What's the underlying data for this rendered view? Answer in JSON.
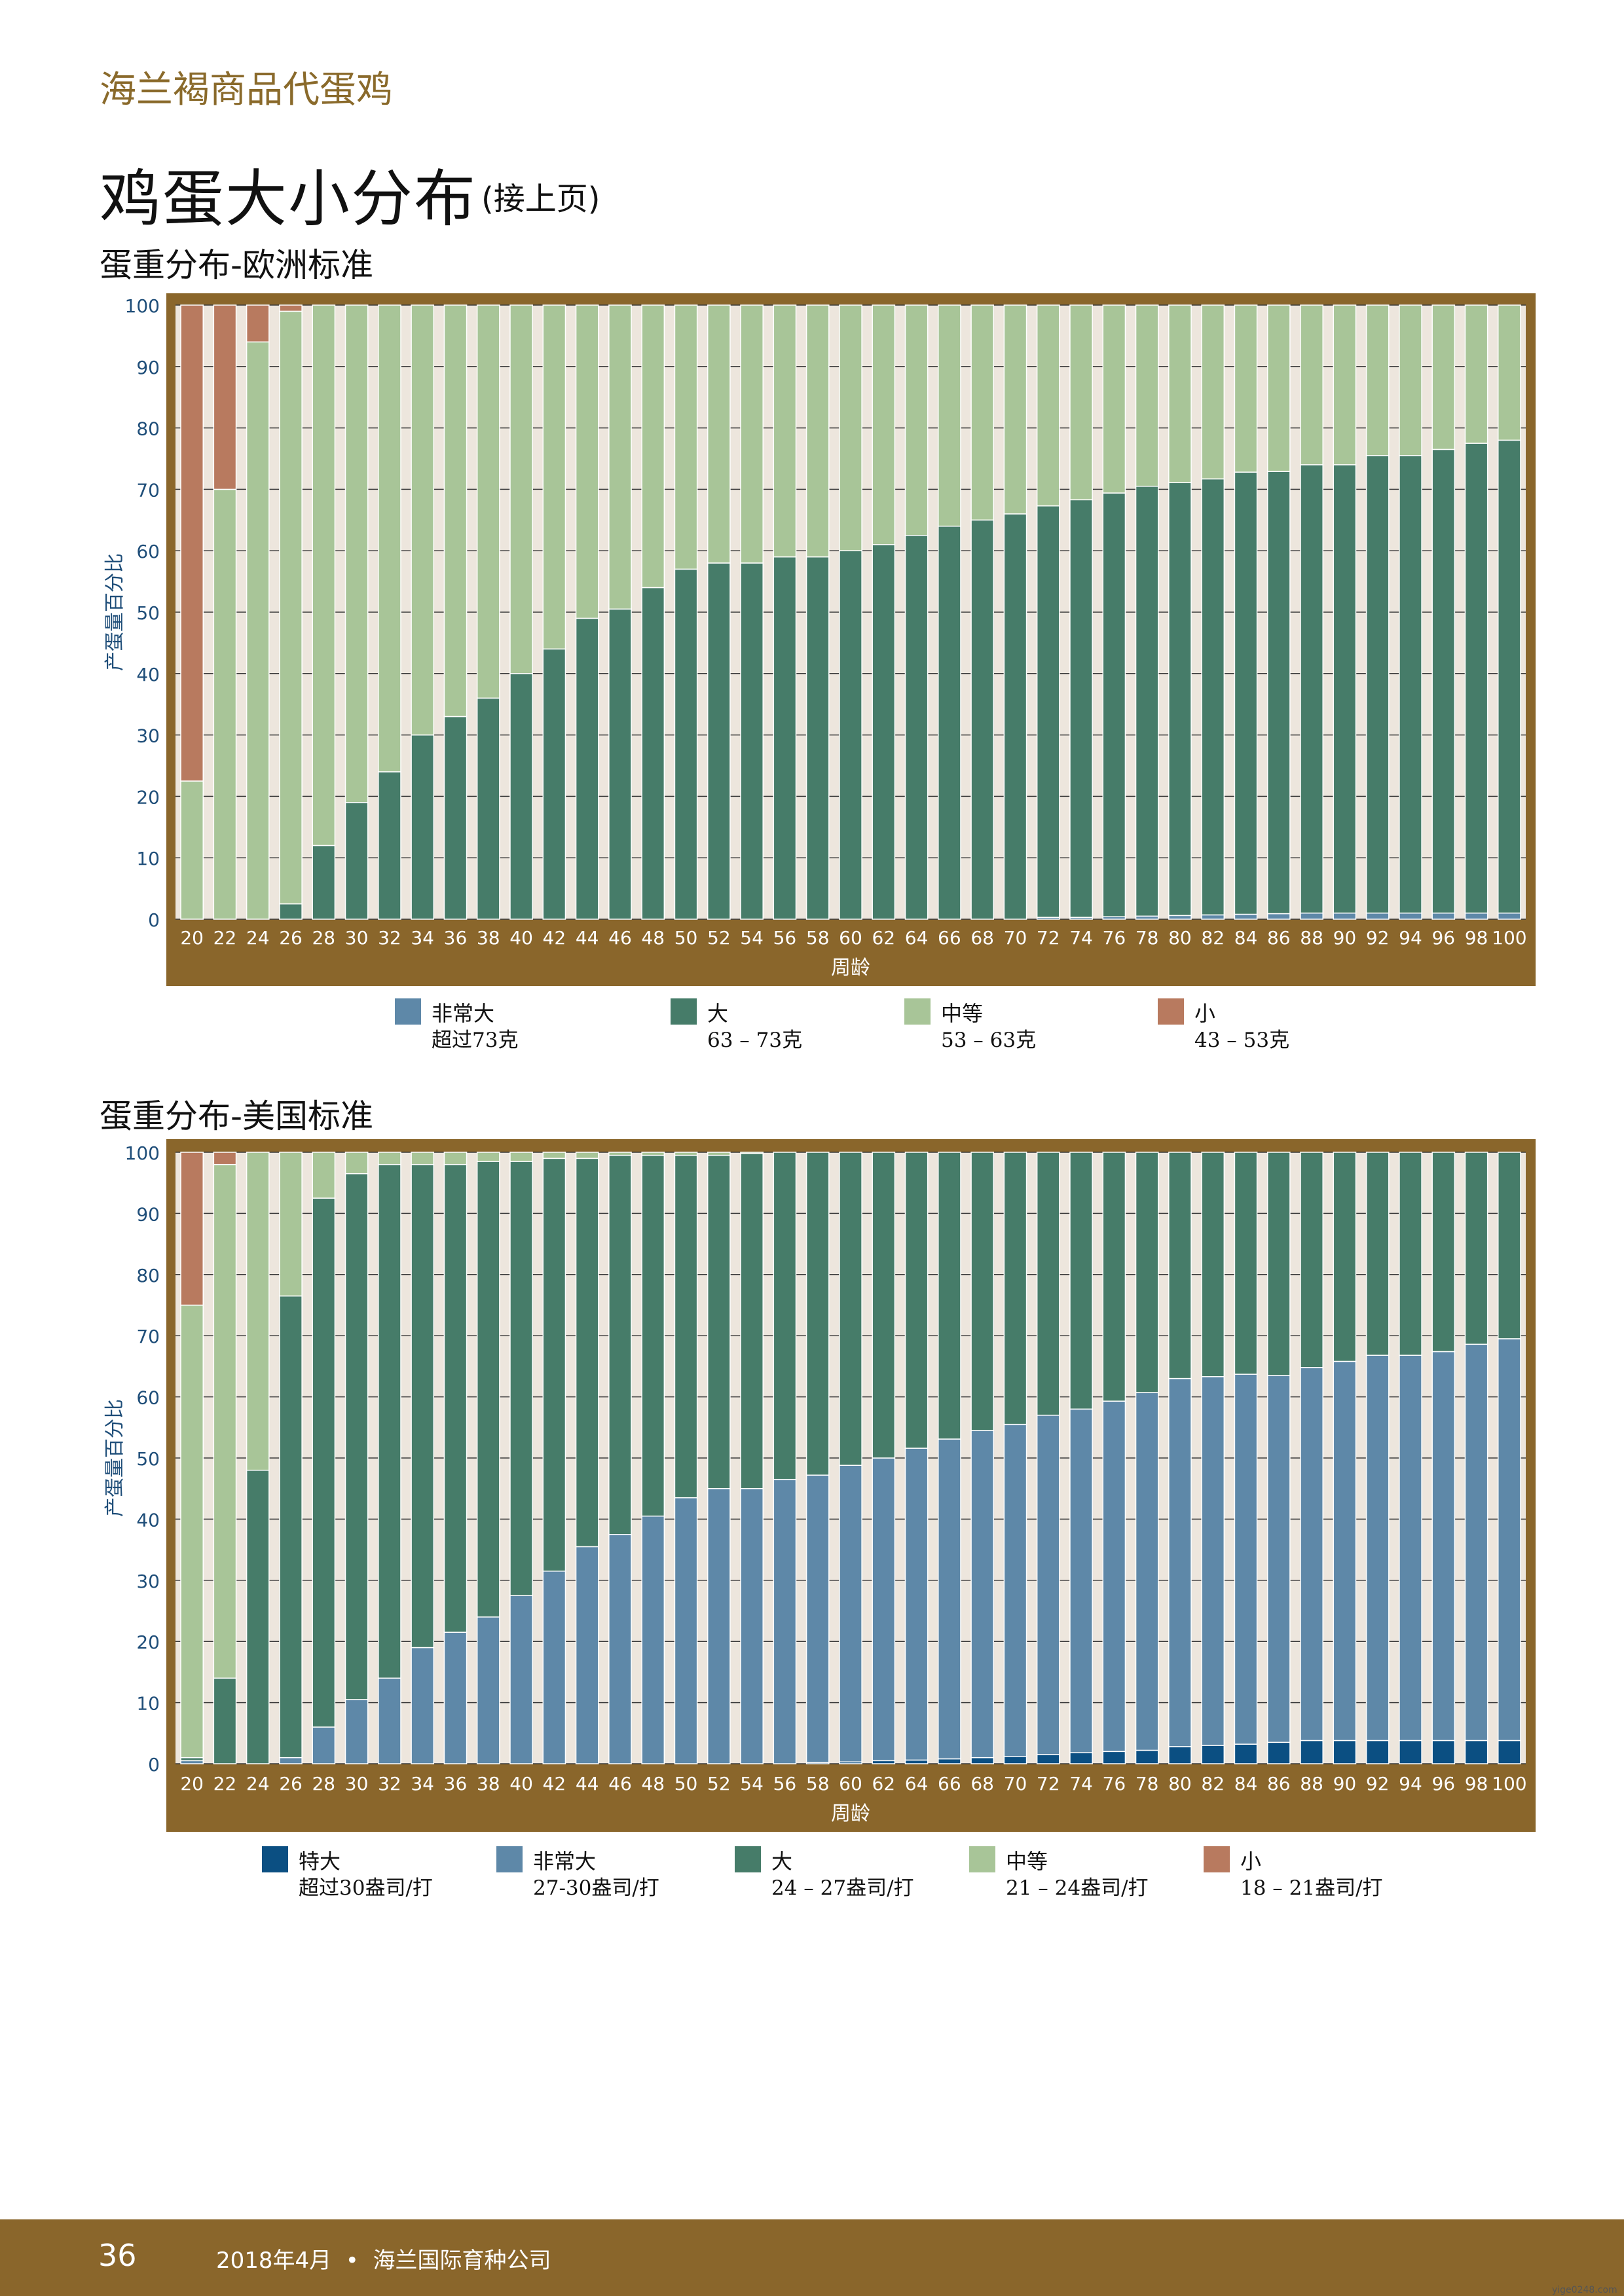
{
  "header": {
    "kicker": "海兰褐商品代蛋鸡",
    "title": "鸡蛋大小分布",
    "title_note": "(接上页)"
  },
  "colors": {
    "xl": "#0b4f82",
    "vl": "#5e88a8",
    "large": "#467c69",
    "medium": "#a8c598",
    "small": "#b87a5f",
    "frame": "#8a662b",
    "plot_bg": "#ede6dd"
  },
  "chart_data": [
    {
      "type": "bar",
      "stacked": true,
      "title": "蛋重分布-欧洲标准",
      "xlabel": "周龄",
      "ylabel": "产蛋量百分比",
      "ylim": [
        0,
        100
      ],
      "yticks": [
        0,
        10,
        20,
        30,
        40,
        50,
        60,
        70,
        80,
        90,
        100
      ],
      "categories": [
        "20",
        "22",
        "24",
        "26",
        "28",
        "30",
        "32",
        "34",
        "36",
        "38",
        "40",
        "42",
        "44",
        "46",
        "48",
        "50",
        "52",
        "54",
        "56",
        "58",
        "60",
        "62",
        "64",
        "66",
        "68",
        "70",
        "72",
        "74",
        "76",
        "78",
        "80",
        "82",
        "84",
        "86",
        "88",
        "90",
        "92",
        "94",
        "96",
        "98",
        "100"
      ],
      "series": [
        {
          "name": "非常大",
          "sub": "超过73克",
          "color": "#5e88a8",
          "values": [
            0,
            0,
            0,
            0,
            0,
            0,
            0,
            0,
            0,
            0,
            0,
            0,
            0,
            0,
            0,
            0,
            0,
            0,
            0,
            0,
            0,
            0,
            0,
            0,
            0,
            0,
            0.3,
            0.3,
            0.4,
            0.5,
            0.6,
            0.7,
            0.8,
            0.9,
            1,
            1,
            1,
            1,
            1,
            1,
            1
          ]
        },
        {
          "name": "大",
          "sub": "63 – 73克",
          "color": "#467c69",
          "values": [
            0,
            0,
            0,
            2.5,
            12,
            19,
            24,
            30,
            33,
            36,
            40,
            44,
            49,
            50.5,
            54,
            57,
            58,
            58,
            59,
            59,
            60,
            61,
            62.5,
            64,
            65,
            66,
            67,
            68,
            69,
            70,
            70.5,
            71,
            72,
            72,
            73,
            73,
            74.5,
            74.5,
            75.5,
            76.5,
            77
          ]
        },
        {
          "name": "中等",
          "sub": "53 – 63克",
          "color": "#a8c598",
          "values": [
            22.5,
            70,
            94,
            96.5,
            88,
            81,
            76,
            70,
            67,
            64,
            60,
            56,
            51,
            49.5,
            46,
            43,
            42,
            42,
            41,
            41,
            40,
            39,
            37.5,
            36,
            35,
            34,
            32.7,
            31.7,
            30.6,
            29.5,
            28.9,
            28.3,
            27.2,
            27.1,
            26,
            26,
            24.5,
            24.5,
            23.5,
            22.5,
            22
          ]
        },
        {
          "name": "小",
          "sub": "43 – 53克",
          "color": "#b87a5f",
          "values": [
            77.5,
            30,
            6,
            1,
            0,
            0,
            0,
            0,
            0,
            0,
            0,
            0,
            0,
            0,
            0,
            0,
            0,
            0,
            0,
            0,
            0,
            0,
            0,
            0,
            0,
            0,
            0,
            0,
            0,
            0,
            0,
            0,
            0,
            0,
            0,
            0,
            0,
            0,
            0,
            0,
            0
          ]
        }
      ]
    },
    {
      "type": "bar",
      "stacked": true,
      "title": "蛋重分布-美国标准",
      "xlabel": "周龄",
      "ylabel": "产蛋量百分比",
      "ylim": [
        0,
        100
      ],
      "yticks": [
        0,
        10,
        20,
        30,
        40,
        50,
        60,
        70,
        80,
        90,
        100
      ],
      "categories": [
        "20",
        "22",
        "24",
        "26",
        "28",
        "30",
        "32",
        "34",
        "36",
        "38",
        "40",
        "42",
        "44",
        "46",
        "48",
        "50",
        "52",
        "54",
        "56",
        "58",
        "60",
        "62",
        "64",
        "66",
        "68",
        "70",
        "72",
        "74",
        "76",
        "78",
        "80",
        "82",
        "84",
        "86",
        "88",
        "90",
        "92",
        "94",
        "96",
        "98",
        "100"
      ],
      "series": [
        {
          "name": "特大",
          "sub": "超过30盎司/打",
          "color": "#0b4f82",
          "values": [
            0,
            0,
            0,
            0,
            0,
            0,
            0,
            0,
            0,
            0,
            0,
            0,
            0,
            0,
            0,
            0,
            0,
            0,
            0,
            0.2,
            0.3,
            0.5,
            0.6,
            0.8,
            1,
            1.2,
            1.5,
            1.8,
            2,
            2.2,
            2.8,
            3,
            3.2,
            3.5,
            3.8,
            3.8,
            3.8,
            3.8,
            3.8,
            3.8,
            3.8
          ]
        },
        {
          "name": "非常大",
          "sub": "27-30盎司/打",
          "color": "#5e88a8",
          "values": [
            0.5,
            0,
            0,
            1,
            6,
            10.5,
            14,
            19,
            21.5,
            24,
            27.5,
            31.5,
            35.5,
            37.5,
            40.5,
            43.5,
            45,
            45,
            46.5,
            47,
            48.5,
            49.5,
            51,
            52.3,
            53.5,
            54.3,
            55.5,
            56.2,
            57.3,
            58.5,
            60.2,
            60.3,
            60.5,
            60,
            61,
            62,
            63,
            63,
            63.6,
            64.8,
            65.7
          ]
        },
        {
          "name": "大",
          "sub": "24 – 27盎司/打",
          "color": "#467c69",
          "values": [
            0.5,
            14,
            48,
            75.5,
            86.5,
            86,
            84,
            79,
            76.5,
            74.5,
            71,
            67.5,
            63.5,
            62,
            59,
            56,
            54.5,
            54.8,
            53.5,
            52.8,
            51.2,
            50,
            48.4,
            46.9,
            45.5,
            44.5,
            43,
            42,
            40.7,
            39.3,
            37,
            36.7,
            36.3,
            36.5,
            35.2,
            34.2,
            33.2,
            33.2,
            32.6,
            31.4,
            30.5
          ]
        },
        {
          "name": "中等",
          "sub": "21 – 24盎司/打",
          "color": "#a8c598",
          "values": [
            74,
            84,
            52,
            23.5,
            7.5,
            3.5,
            2,
            2,
            2,
            1.5,
            1.5,
            1,
            1,
            0.5,
            0.5,
            0.5,
            0.5,
            0.2,
            0,
            0,
            0,
            0,
            0,
            0,
            0,
            0,
            0,
            0,
            0,
            0,
            0,
            0,
            0,
            0,
            0,
            0,
            0,
            0,
            0,
            0,
            0
          ]
        },
        {
          "name": "小",
          "sub": "18 – 21盎司/打",
          "color": "#b87a5f",
          "values": [
            25,
            2,
            0,
            0,
            0,
            0,
            0,
            0,
            0,
            0,
            0,
            0,
            0,
            0,
            0,
            0,
            0,
            0,
            0,
            0,
            0,
            0,
            0,
            0,
            0,
            0,
            0,
            0,
            0,
            0,
            0,
            0,
            0,
            0,
            0,
            0,
            0,
            0,
            0,
            0,
            0
          ]
        }
      ]
    }
  ],
  "footer": {
    "page_number": "36",
    "text": "2018年4月  •  海兰国际育种公司"
  },
  "watermark": "yige0248.com"
}
